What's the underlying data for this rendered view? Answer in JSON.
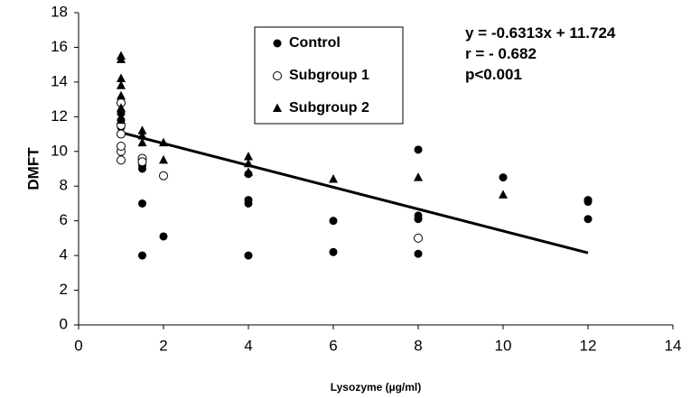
{
  "chart_data": {
    "type": "scatter",
    "xlabel": "Lysozyme (µg/ml)",
    "ylabel": "DMFT",
    "xlim": [
      0,
      14
    ],
    "xticks": [
      0,
      2,
      4,
      6,
      8,
      10,
      12,
      14
    ],
    "ylim": [
      0,
      18
    ],
    "yticks": [
      0,
      2,
      4,
      6,
      8,
      10,
      12,
      14,
      16,
      18
    ],
    "grid": false,
    "legend": "top-center",
    "series": [
      {
        "name": "Control",
        "color": "#000000",
        "marker": "filled-circle",
        "x": [
          1,
          1,
          1,
          1.5,
          1.5,
          1.5,
          1.5,
          2,
          4,
          4,
          4,
          4,
          6,
          6,
          8,
          8,
          8,
          8,
          10,
          12,
          12,
          12
        ],
        "values": [
          12.2,
          11.8,
          11.4,
          9.2,
          9.0,
          7.0,
          4.0,
          5.1,
          8.7,
          7.2,
          7.0,
          4.0,
          6.0,
          4.2,
          10.1,
          6.3,
          6.1,
          4.1,
          8.5,
          7.2,
          7.1,
          6.1
        ]
      },
      {
        "name": "Subgroup 1",
        "color": "#000000",
        "marker": "open-circle",
        "x": [
          1,
          1,
          1,
          1,
          1,
          1,
          1.5,
          1.5,
          2,
          8
        ],
        "values": [
          9.5,
          10.0,
          10.3,
          11.0,
          11.5,
          12.8,
          9.6,
          9.4,
          8.6,
          5.0
        ]
      },
      {
        "name": "Subgroup 2",
        "color": "#000000",
        "marker": "triangle",
        "x": [
          1,
          1,
          1,
          1,
          1,
          1,
          1,
          1.5,
          1.5,
          1.5,
          2,
          2,
          4,
          4,
          4,
          6,
          8,
          10
        ],
        "values": [
          15.5,
          15.3,
          14.2,
          13.8,
          13.2,
          12.5,
          11.8,
          11.2,
          10.9,
          10.5,
          10.5,
          9.5,
          9.7,
          9.3,
          8.8,
          8.4,
          8.5,
          7.5
        ]
      }
    ],
    "trendline": {
      "x": [
        1,
        12
      ],
      "values": [
        11.09,
        4.15
      ]
    },
    "annotations": [
      "y = -0.6313x + 11.724",
      "r = - 0.682",
      "p<0.001"
    ]
  }
}
